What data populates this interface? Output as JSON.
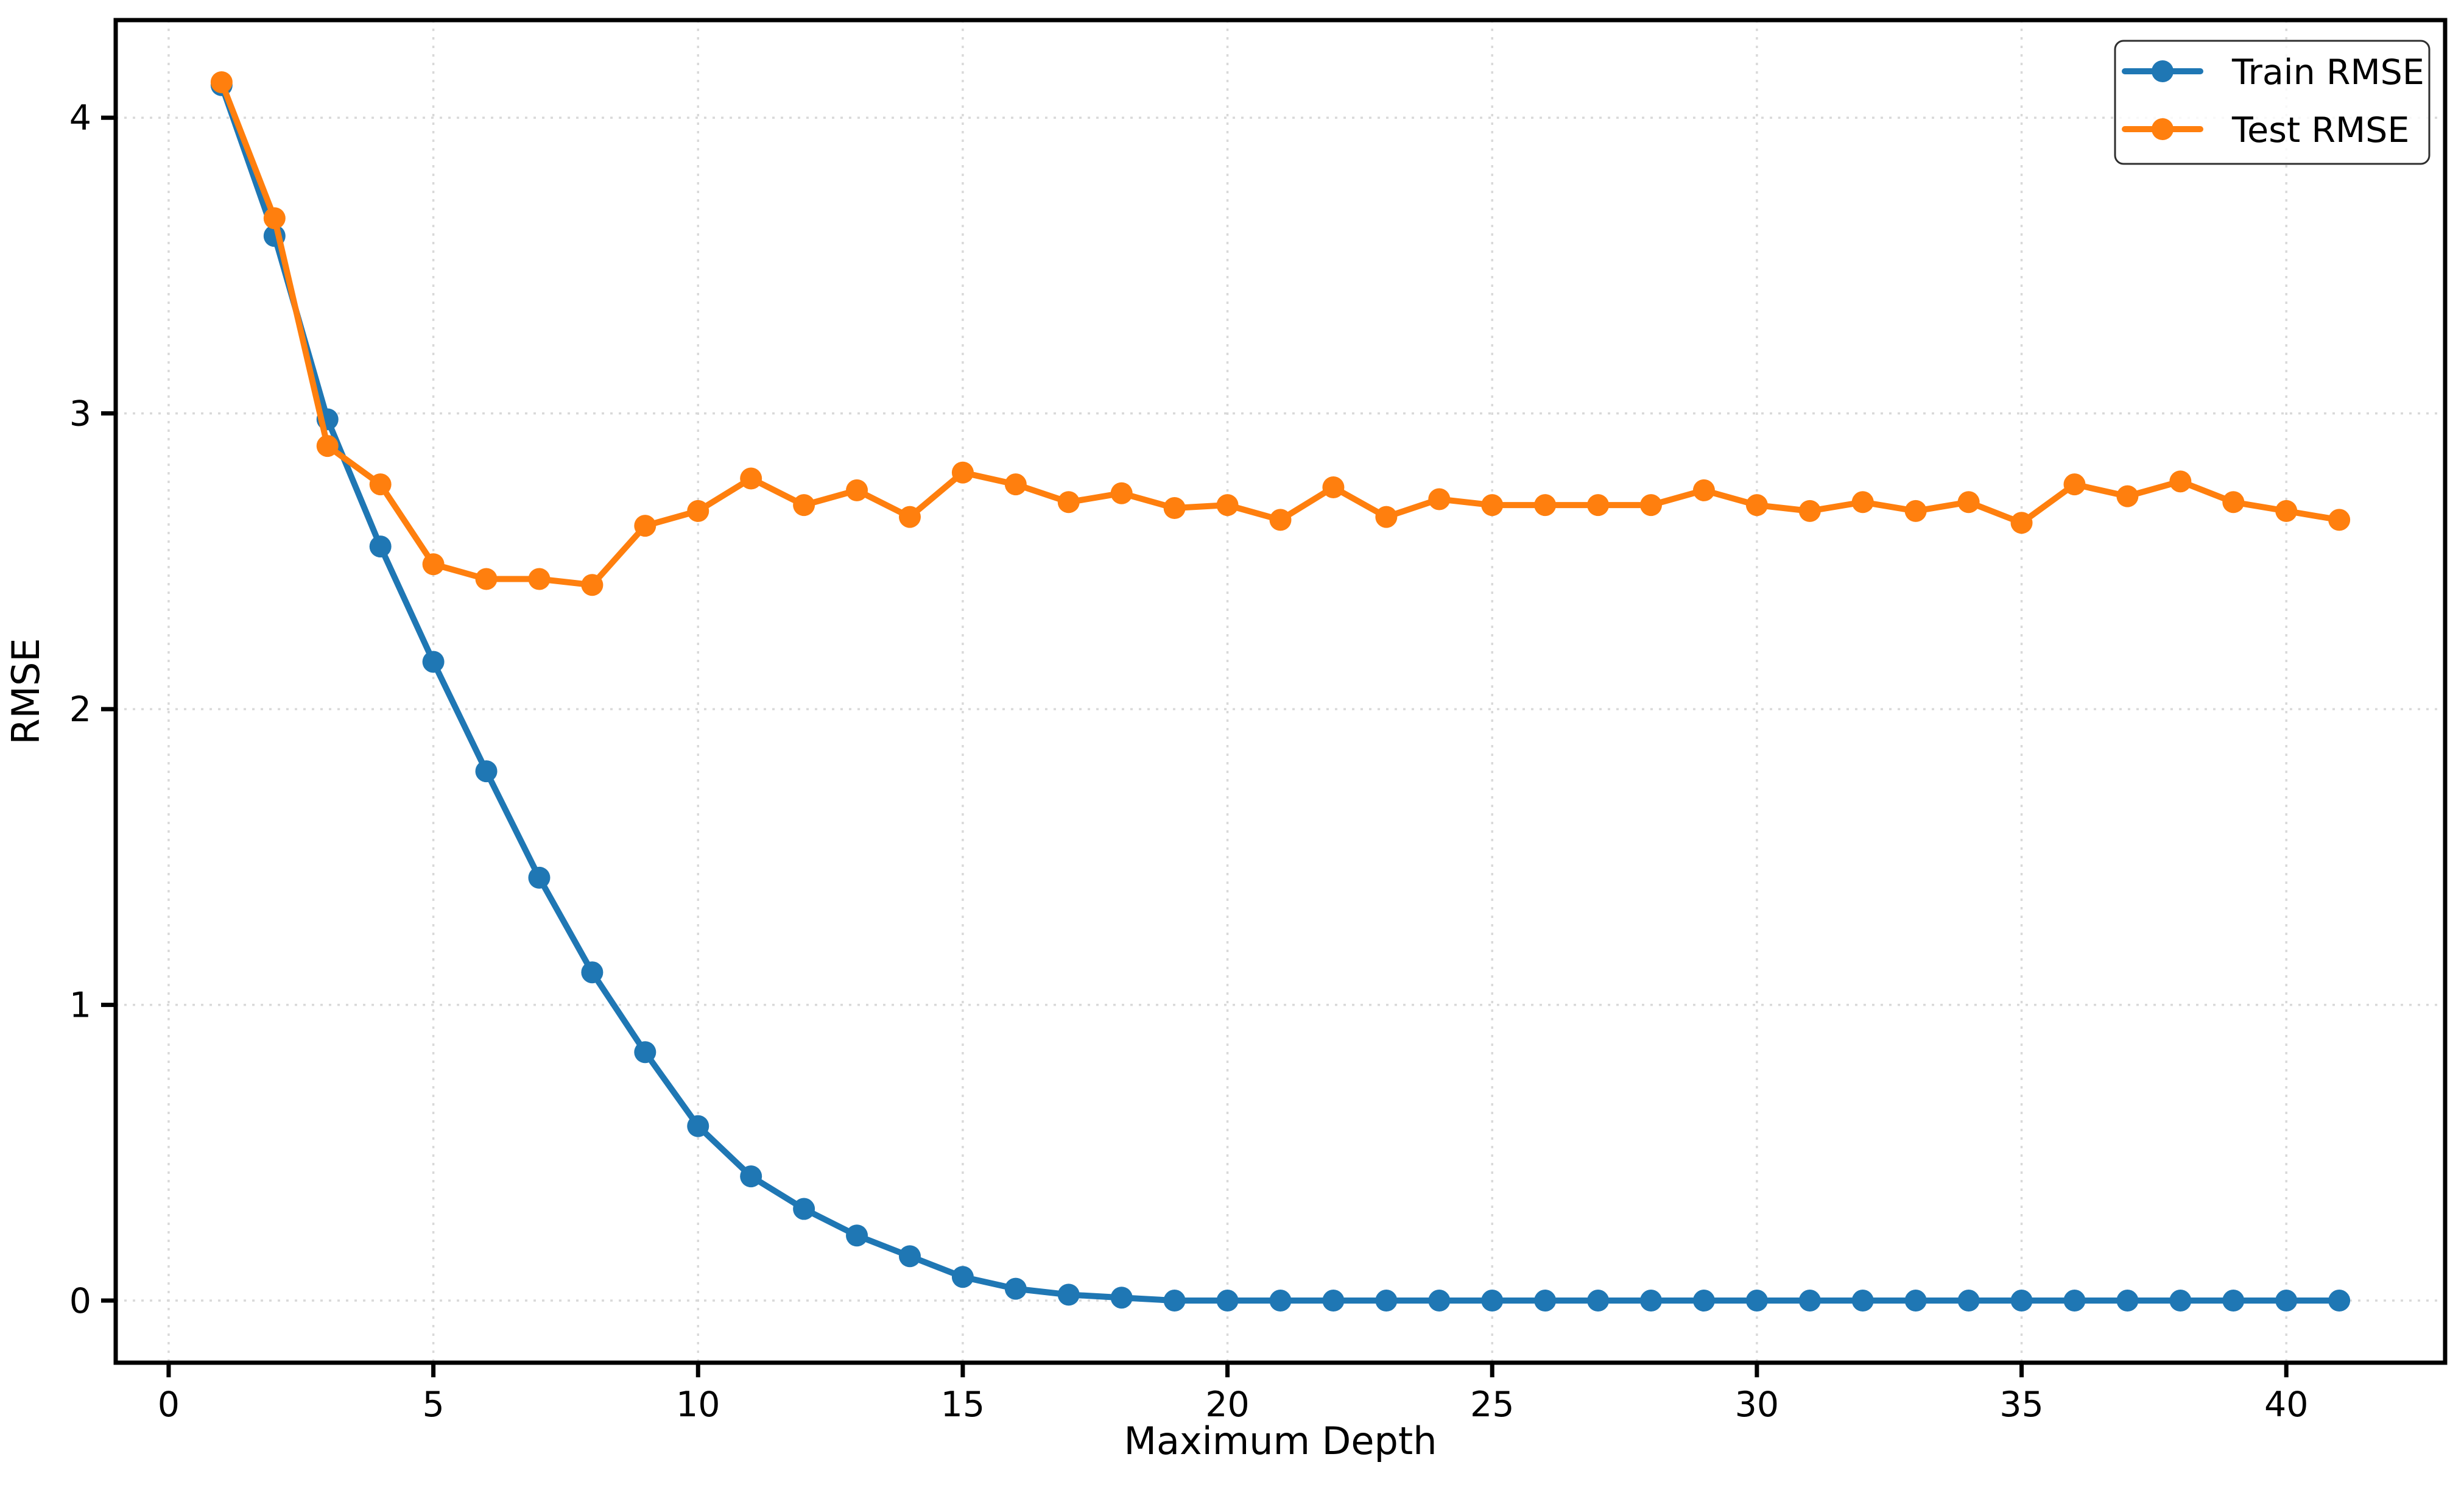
{
  "chart_data": {
    "type": "line",
    "title": "",
    "xlabel": "Maximum Depth",
    "ylabel": "RMSE",
    "x_ticks": [
      0,
      5,
      10,
      15,
      20,
      25,
      30,
      35,
      40
    ],
    "y_ticks": [
      0,
      1,
      2,
      3,
      4
    ],
    "xlim": [
      -1,
      43
    ],
    "ylim": [
      -0.21,
      4.33
    ],
    "grid": "dotted",
    "grid_color": "#d9d9d9",
    "axis_color": "#000000",
    "background_color": "#ffffff",
    "legend": {
      "position": "upper right",
      "entries": [
        "Train RMSE",
        "Test RMSE"
      ]
    },
    "x": [
      1,
      2,
      3,
      4,
      5,
      6,
      7,
      8,
      9,
      10,
      11,
      12,
      13,
      14,
      15,
      16,
      17,
      18,
      19,
      20,
      21,
      22,
      23,
      24,
      25,
      26,
      27,
      28,
      29,
      30,
      31,
      32,
      33,
      34,
      35,
      36,
      37,
      38,
      39,
      40,
      41
    ],
    "series": [
      {
        "name": "Train RMSE",
        "color": "#1f77b4",
        "values": [
          4.11,
          3.6,
          2.98,
          2.55,
          2.16,
          1.79,
          1.43,
          1.11,
          0.84,
          0.59,
          0.42,
          0.31,
          0.22,
          0.15,
          0.08,
          0.04,
          0.02,
          0.01,
          0.0,
          0.0,
          0.0,
          0.0,
          0.0,
          0.0,
          0.0,
          0.0,
          0.0,
          0.0,
          0.0,
          0.0,
          0.0,
          0.0,
          0.0,
          0.0,
          0.0,
          0.0,
          0.0,
          0.0,
          0.0,
          0.0,
          0.0
        ]
      },
      {
        "name": "Test RMSE",
        "color": "#ff7f0e",
        "values": [
          4.12,
          3.66,
          2.89,
          2.76,
          2.49,
          2.44,
          2.44,
          2.42,
          2.62,
          2.67,
          2.78,
          2.69,
          2.74,
          2.65,
          2.8,
          2.76,
          2.7,
          2.73,
          2.68,
          2.69,
          2.64,
          2.75,
          2.65,
          2.71,
          2.69,
          2.69,
          2.69,
          2.69,
          2.74,
          2.69,
          2.67,
          2.7,
          2.67,
          2.7,
          2.63,
          2.76,
          2.72,
          2.77,
          2.7,
          2.67,
          2.64
        ]
      }
    ]
  }
}
